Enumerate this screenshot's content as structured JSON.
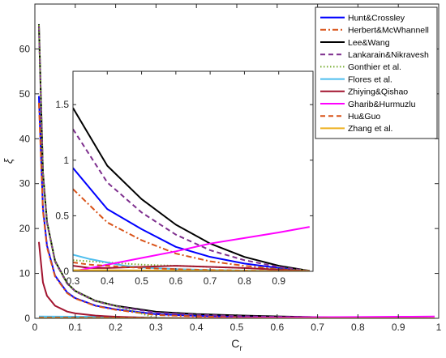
{
  "chart_data": [
    {
      "type": "line",
      "role": "main",
      "title": "",
      "xlabel": "C",
      "xlabel_subscript": "r",
      "ylabel": "ξ",
      "xlim": [
        0,
        1
      ],
      "ylim": [
        0,
        70
      ],
      "xticks": [
        0,
        0.1,
        0.2,
        0.3,
        0.4,
        0.5,
        0.6,
        0.7,
        0.8,
        0.9,
        1
      ],
      "xtick_labels": [
        "0",
        "0.1",
        "0.2",
        "0.3",
        "0.4",
        "0.5",
        "0.6",
        "0.7",
        "0.8",
        "0.9",
        "1"
      ],
      "yticks": [
        0,
        10,
        20,
        30,
        40,
        50,
        60
      ],
      "ytick_labels": [
        "0",
        "10",
        "20",
        "30",
        "40",
        "50",
        "60"
      ],
      "grid": false,
      "legend_position": "top-right",
      "series": [
        {
          "name": "Hunt&Crossley",
          "color": "#0000ff",
          "dash": "solid",
          "x": [
            0.01,
            0.02,
            0.03,
            0.05,
            0.08,
            0.1,
            0.15,
            0.2,
            0.3,
            0.4,
            0.5,
            0.6,
            0.7,
            0.8,
            0.9,
            0.99
          ],
          "y": [
            49.5,
            24.5,
            16.2,
            9.5,
            5.75,
            4.5,
            2.83,
            2.0,
            0.93,
            0.56,
            0.38,
            0.22,
            0.13,
            0.07,
            0.03,
            0.003
          ]
        },
        {
          "name": "Herbert&McWhannell",
          "color": "#d95319",
          "dash": "dashdot",
          "x": [
            0.01,
            0.02,
            0.03,
            0.05,
            0.08,
            0.1,
            0.15,
            0.2,
            0.3,
            0.4,
            0.5,
            0.6,
            0.7,
            0.8,
            0.9,
            0.99
          ],
          "y": [
            48.0,
            23.9,
            15.8,
            9.3,
            5.6,
            4.4,
            2.76,
            1.9,
            0.74,
            0.44,
            0.28,
            0.16,
            0.09,
            0.05,
            0.02,
            0.002
          ]
        },
        {
          "name": "Lee&Wang",
          "color": "#000000",
          "dash": "solid",
          "x": [
            0.01,
            0.02,
            0.03,
            0.05,
            0.08,
            0.1,
            0.15,
            0.2,
            0.3,
            0.4,
            0.5,
            0.6,
            0.7,
            0.8,
            0.9,
            0.99
          ],
          "y": [
            65.5,
            32.5,
            21.5,
            12.8,
            7.8,
            6.1,
            3.9,
            2.8,
            1.47,
            0.95,
            0.65,
            0.42,
            0.25,
            0.13,
            0.05,
            0.005
          ]
        },
        {
          "name": "Lankarain&Nikravesh",
          "color": "#7e2f8e",
          "dash": "dashed",
          "x": [
            0.01,
            0.02,
            0.03,
            0.05,
            0.08,
            0.1,
            0.15,
            0.2,
            0.3,
            0.4,
            0.5,
            0.6,
            0.7,
            0.8,
            0.9,
            0.99
          ],
          "y": [
            65.0,
            32.3,
            21.3,
            12.6,
            7.7,
            6.0,
            3.8,
            2.7,
            1.28,
            0.8,
            0.53,
            0.33,
            0.19,
            0.1,
            0.04,
            0.004
          ]
        },
        {
          "name": "Gonthier et al.",
          "color": "#77ac30",
          "dash": "dotted",
          "x": [
            0.01,
            0.02,
            0.03,
            0.05,
            0.08,
            0.1,
            0.15,
            0.2,
            0.3,
            0.4,
            0.5,
            0.6,
            0.7,
            0.8,
            0.9,
            0.99
          ],
          "y": [
            65.3,
            32.4,
            21.4,
            12.7,
            7.75,
            6.05,
            3.85,
            2.75,
            0.1,
            0.08,
            0.06,
            0.05,
            0.04,
            0.03,
            0.02,
            0.01
          ]
        },
        {
          "name": "Flores et al.",
          "color": "#4dbeee",
          "dash": "solid",
          "x": [
            0.01,
            0.1,
            0.2,
            0.3,
            0.35,
            0.4,
            0.45,
            0.5,
            0.6,
            0.7,
            0.8,
            0.9,
            0.99
          ],
          "y": [
            0.4,
            0.36,
            0.32,
            0.15,
            0.11,
            0.08,
            0.05,
            0.035,
            0.02,
            0.012,
            0.007,
            0.003,
            0.001
          ]
        },
        {
          "name": "Zhiying&Qishao",
          "color": "#a2142f",
          "dash": "solid",
          "x": [
            0.01,
            0.02,
            0.03,
            0.05,
            0.08,
            0.1,
            0.15,
            0.2,
            0.3,
            0.35,
            0.4,
            0.5,
            0.6,
            0.7,
            0.8,
            0.9,
            0.99
          ],
          "y": [
            17.0,
            8.0,
            5.0,
            2.8,
            1.5,
            1.1,
            0.6,
            0.35,
            0.05,
            0.03,
            0.03,
            0.04,
            0.05,
            0.04,
            0.03,
            0.015,
            0.002
          ]
        },
        {
          "name": "Gharib&Hurmuzlu",
          "color": "#ff00ff",
          "dash": "solid",
          "x": [
            0.01,
            0.1,
            0.2,
            0.3,
            0.4,
            0.5,
            0.6,
            0.7,
            0.8,
            0.9,
            0.99
          ],
          "y": [
            0.0,
            0.0,
            0.0,
            0.0,
            0.06,
            0.12,
            0.18,
            0.25,
            0.3,
            0.35,
            0.4
          ]
        },
        {
          "name": "Hu&Guo",
          "color": "#d95319",
          "dash": "dashed",
          "x": [
            0.01,
            0.1,
            0.2,
            0.3,
            0.35,
            0.4,
            0.45,
            0.5,
            0.6,
            0.7,
            0.8,
            0.9,
            0.99
          ],
          "y": [
            0.15,
            0.15,
            0.13,
            0.08,
            0.06,
            0.05,
            0.04,
            0.03,
            0.02,
            0.012,
            0.007,
            0.003,
            0.0
          ]
        },
        {
          "name": "Zhang et al.",
          "color": "#edb120",
          "dash": "solid",
          "x": [
            0.01,
            0.1,
            0.2,
            0.3,
            0.4,
            0.5,
            0.6,
            0.7,
            0.8,
            0.9,
            0.99
          ],
          "y": [
            0.01,
            0.01,
            0.01,
            0.01,
            0.01,
            0.008,
            0.006,
            0.005,
            0.004,
            0.002,
            0.001
          ]
        }
      ]
    },
    {
      "type": "line",
      "role": "inset",
      "title": "",
      "xlim": [
        0.3,
        1
      ],
      "ylim": [
        0,
        1.8
      ],
      "xticks": [
        0.3,
        0.4,
        0.5,
        0.6,
        0.7,
        0.8,
        0.9
      ],
      "xtick_labels": [
        "0.3",
        "0.4",
        "0.5",
        "0.6",
        "0.7",
        "0.8",
        "0.9"
      ],
      "yticks": [
        0,
        0.5,
        1,
        1.5
      ],
      "ytick_labels": [
        "0",
        "0.5",
        "1",
        "1.5"
      ],
      "grid": false,
      "note_series_source": "same series as main chart, restricted to x >= 0.3"
    }
  ]
}
